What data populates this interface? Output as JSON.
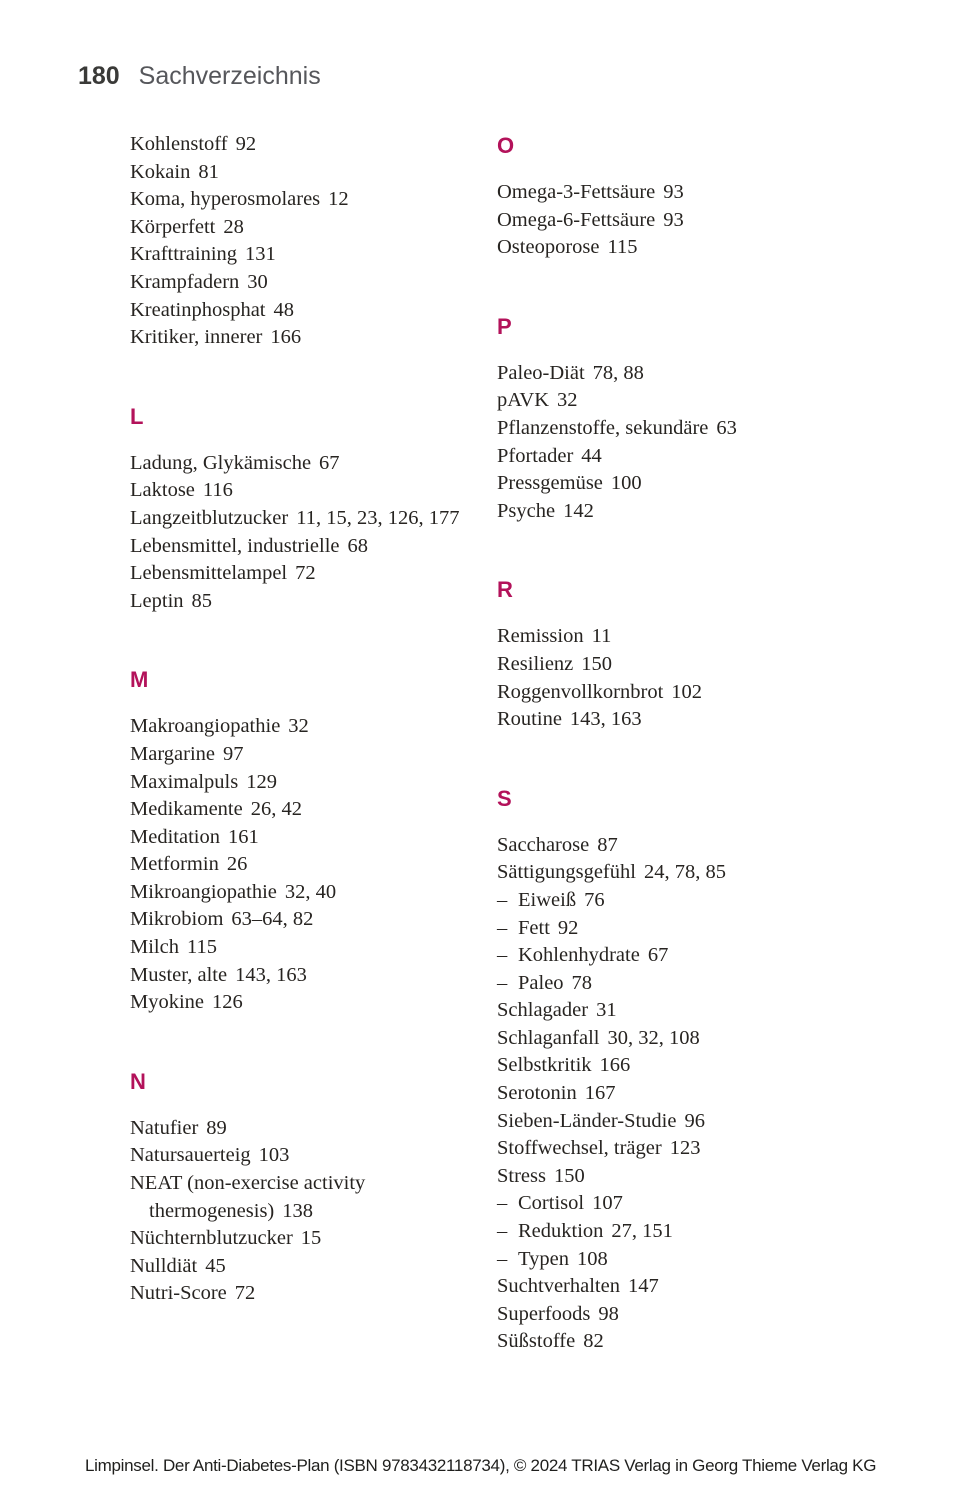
{
  "page": {
    "number": "180",
    "title": "Sachverzeichnis",
    "accent_color": "#b3125a",
    "footer": "Limpinsel. Der Anti-Diabetes-Plan (ISBN 9783432118734), © 2024 TRIAS Verlag in Georg Thieme Verlag KG"
  },
  "index": {
    "sub_marker": "–",
    "columns": {
      "left": [
        {
          "letter": null,
          "entries": [
            {
              "term": "Kohlenstoff",
              "pages": "92"
            },
            {
              "term": "Kokain",
              "pages": "81"
            },
            {
              "term": "Koma, hyperosmolares",
              "pages": "12"
            },
            {
              "term": "Körperfett",
              "pages": "28"
            },
            {
              "term": "Krafttraining",
              "pages": "131"
            },
            {
              "term": "Krampfadern",
              "pages": "30"
            },
            {
              "term": "Kreatinphosphat",
              "pages": "48"
            },
            {
              "term": "Kritiker, innerer",
              "pages": "166"
            }
          ]
        },
        {
          "letter": "L",
          "entries": [
            {
              "term": "Ladung, Glykämische",
              "pages": "67"
            },
            {
              "term": "Laktose",
              "pages": "116"
            },
            {
              "term": "Langzeitblutzucker",
              "pages": "11, 15, 23, 126, 177"
            },
            {
              "term": "Lebensmittel, industrielle",
              "pages": "68"
            },
            {
              "term": "Lebensmittelampel",
              "pages": "72"
            },
            {
              "term": "Leptin",
              "pages": "85"
            }
          ]
        },
        {
          "letter": "M",
          "entries": [
            {
              "term": "Makroangiopathie",
              "pages": "32"
            },
            {
              "term": "Margarine",
              "pages": "97"
            },
            {
              "term": "Maximalpuls",
              "pages": "129"
            },
            {
              "term": "Medikamente",
              "pages": "26, 42"
            },
            {
              "term": "Meditation",
              "pages": "161"
            },
            {
              "term": "Metformin",
              "pages": "26"
            },
            {
              "term": "Mikroangiopathie",
              "pages": "32, 40"
            },
            {
              "term": "Mikrobiom",
              "pages": "63–64, 82"
            },
            {
              "term": "Milch",
              "pages": "115"
            },
            {
              "term": "Muster, alte",
              "pages": "143, 163"
            },
            {
              "term": "Myokine",
              "pages": "126"
            }
          ]
        },
        {
          "letter": "N",
          "entries": [
            {
              "term": "Natufier",
              "pages": "89"
            },
            {
              "term": "Natursauerteig",
              "pages": "103"
            },
            {
              "term": "NEAT (non-exercise activity thermogenesis)",
              "pages": "138"
            },
            {
              "term": "Nüchternblutzucker",
              "pages": "15"
            },
            {
              "term": "Nulldiät",
              "pages": "45"
            },
            {
              "term": "Nutri-Score",
              "pages": "72"
            }
          ]
        }
      ],
      "right": [
        {
          "letter": "O",
          "entries": [
            {
              "term": "Omega-3-Fettsäure",
              "pages": "93"
            },
            {
              "term": "Omega-6-Fettsäure",
              "pages": "93"
            },
            {
              "term": "Osteoporose",
              "pages": "115"
            }
          ]
        },
        {
          "letter": "P",
          "entries": [
            {
              "term": "Paleo-Diät",
              "pages": "78, 88"
            },
            {
              "term": "pAVK",
              "pages": "32"
            },
            {
              "term": "Pflanzenstoffe, sekundäre",
              "pages": "63"
            },
            {
              "term": "Pfortader",
              "pages": "44"
            },
            {
              "term": "Pressgemüse",
              "pages": "100"
            },
            {
              "term": "Psyche",
              "pages": "142"
            }
          ]
        },
        {
          "letter": "R",
          "entries": [
            {
              "term": "Remission",
              "pages": "11"
            },
            {
              "term": "Resilienz",
              "pages": "150"
            },
            {
              "term": "Roggenvollkornbrot",
              "pages": "102"
            },
            {
              "term": "Routine",
              "pages": "143, 163"
            }
          ]
        },
        {
          "letter": "S",
          "entries": [
            {
              "term": "Saccharose",
              "pages": "87"
            },
            {
              "term": "Sättigungsgefühl",
              "pages": "24, 78, 85"
            },
            {
              "term": "Eiweiß",
              "pages": "76",
              "sub": true
            },
            {
              "term": "Fett",
              "pages": "92",
              "sub": true
            },
            {
              "term": "Kohlenhydrate",
              "pages": "67",
              "sub": true
            },
            {
              "term": "Paleo",
              "pages": "78",
              "sub": true
            },
            {
              "term": "Schlagader",
              "pages": "31"
            },
            {
              "term": "Schlaganfall",
              "pages": "30, 32, 108"
            },
            {
              "term": "Selbstkritik",
              "pages": "166"
            },
            {
              "term": "Serotonin",
              "pages": "167"
            },
            {
              "term": "Sieben-Länder-Studie",
              "pages": "96"
            },
            {
              "term": "Stoffwechsel, träger",
              "pages": "123"
            },
            {
              "term": "Stress",
              "pages": "150"
            },
            {
              "term": "Cortisol",
              "pages": "107",
              "sub": true
            },
            {
              "term": "Reduktion",
              "pages": "27, 151",
              "sub": true
            },
            {
              "term": "Typen",
              "pages": "108",
              "sub": true
            },
            {
              "term": "Suchtverhalten",
              "pages": "147"
            },
            {
              "term": "Superfoods",
              "pages": "98"
            },
            {
              "term": "Süßstoffe",
              "pages": "82"
            }
          ]
        }
      ]
    }
  }
}
